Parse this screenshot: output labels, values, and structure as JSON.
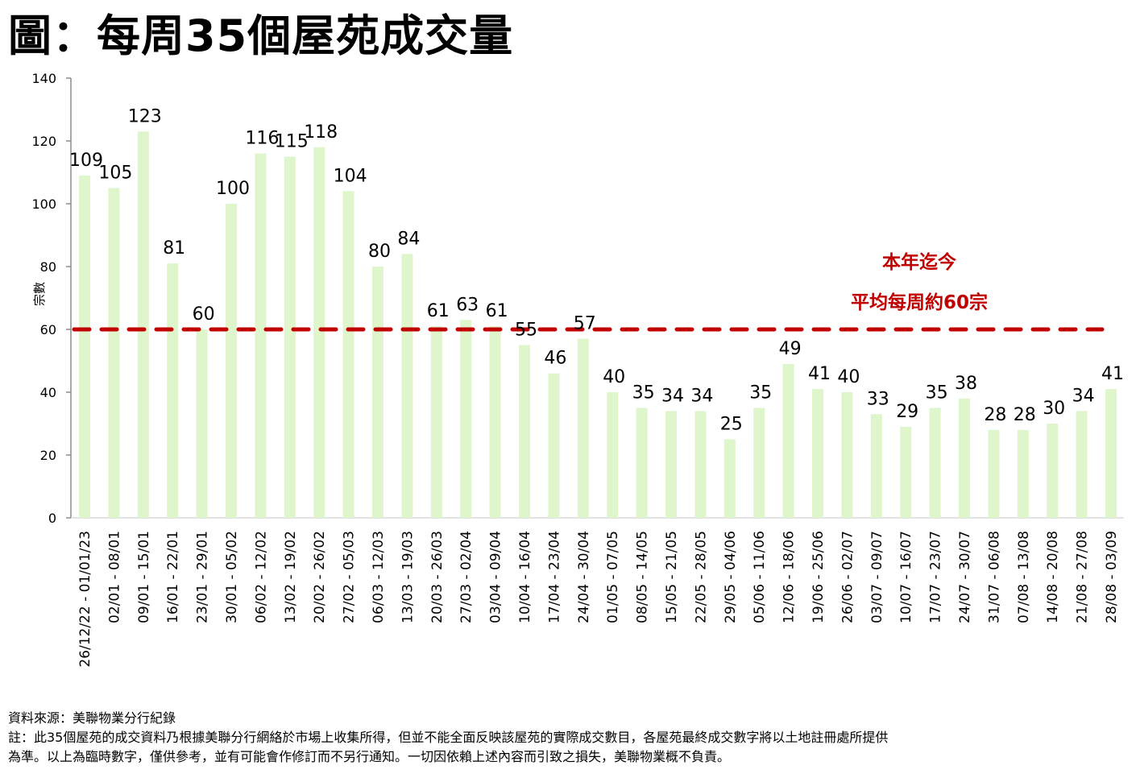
{
  "title": "圖：每周35個屋苑成交量",
  "chart_data": {
    "type": "bar",
    "title": "圖：每周35個屋苑成交量",
    "xlabel": "",
    "ylabel": "宗數",
    "ylim": [
      0,
      140
    ],
    "yticks": [
      0,
      20,
      40,
      60,
      80,
      100,
      120,
      140
    ],
    "grid": false,
    "bar_color": "#dff5cc",
    "categories": [
      "26/12/22 - 01/01/23",
      "02/01 - 08/01",
      "09/01 - 15/01",
      "16/01 - 22/01",
      "23/01 - 29/01",
      "30/01 - 05/02",
      "06/02 - 12/02",
      "13/02 - 19/02",
      "20/02 - 26/02",
      "27/02 - 05/03",
      "06/03 - 12/03",
      "13/03 - 19/03",
      "20/03 - 26/03",
      "27/03 - 02/04",
      "03/04 - 09/04",
      "10/04 - 16/04",
      "17/04 - 23/04",
      "24/04 - 30/04",
      "01/05 - 07/05",
      "08/05 - 14/05",
      "15/05 - 21/05",
      "22/05 - 28/05",
      "29/05 - 04/06",
      "05/06 - 11/06",
      "12/06 - 18/06",
      "19/06 - 25/06",
      "26/06 - 02/07",
      "03/07 - 09/07",
      "10/07 - 16/07",
      "17/07 - 23/07",
      "24/07 - 30/07",
      "31/07 - 06/08",
      "07/08 - 13/08",
      "14/08 - 20/08",
      "21/08 - 27/08",
      "28/08 - 03/09"
    ],
    "values": [
      109,
      105,
      123,
      81,
      60,
      100,
      116,
      115,
      118,
      104,
      80,
      84,
      61,
      63,
      61,
      55,
      46,
      57,
      40,
      35,
      34,
      34,
      25,
      35,
      49,
      41,
      40,
      33,
      29,
      35,
      38,
      28,
      28,
      30,
      34,
      41
    ],
    "reference_line": {
      "value": 60,
      "style": "dashed",
      "color": "#c00000"
    },
    "annotations": [
      "本年迄今",
      "平均每周約60宗"
    ],
    "annotation_color": "#c00000"
  },
  "footer": {
    "source": "資料來源：美聯物業分行紀錄",
    "note_line1": "註：此35個屋苑的成交資料乃根據美聯分行網絡於市場上收集所得，但並不能全面反映該屋苑的實際成交數目，各屋苑最終成交數字將以土地註冊處所提供",
    "note_line2": "為準。以上為臨時數字，僅供參考，並有可能會作修訂而不另行通知。一切因依賴上述內容而引致之損失，美聯物業概不負責。"
  }
}
